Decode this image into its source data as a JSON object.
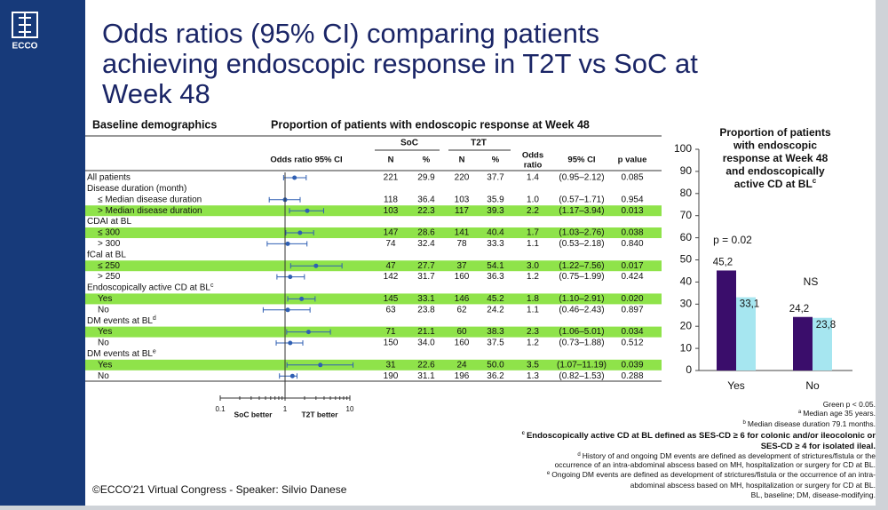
{
  "logo": "ECCO",
  "title": [
    "Odds ratios (95% CI) comparing patients",
    "achieving endoscopic response in T2T vs SoC at",
    "Week 48"
  ],
  "table": {
    "heading_left": "Baseline demographics",
    "heading_right": "Proportion of patients with endoscopic response at Week 48",
    "group_headers": [
      "SoC",
      "T2T"
    ],
    "columns": [
      "Odds ratio 95% CI",
      "N",
      "%",
      "N",
      "%",
      "Odds ratio",
      "95% CI",
      "p value"
    ],
    "rows": [
      {
        "label": "All patients",
        "soc_n": "221",
        "soc_pct": "29.9",
        "t2t_n": "220",
        "t2t_pct": "37.7",
        "or": "1.4",
        "ci": "(0.95–2.12)",
        "p": "0.085"
      },
      {
        "label": "Disease duration (month)"
      },
      {
        "label": "≤ Median disease duration",
        "soc_n": "118",
        "soc_pct": "36.4",
        "t2t_n": "103",
        "t2t_pct": "35.9",
        "or": "1.0",
        "ci": "(0.57–1.71)",
        "p": "0.954",
        "indent": true
      },
      {
        "label": "> Median disease duration",
        "soc_n": "103",
        "soc_pct": "22.3",
        "t2t_n": "117",
        "t2t_pct": "39.3",
        "or": "2.2",
        "ci": "(1.17–3.94)",
        "p": "0.013",
        "indent": true,
        "highlight": true
      },
      {
        "label": "CDAI at BL"
      },
      {
        "label": "≤ 300",
        "soc_n": "147",
        "soc_pct": "28.6",
        "t2t_n": "141",
        "t2t_pct": "40.4",
        "or": "1.7",
        "ci": "(1.03–2.76)",
        "p": "0.038",
        "indent": true,
        "highlight": true
      },
      {
        "label": "> 300",
        "soc_n": "74",
        "soc_pct": "32.4",
        "t2t_n": "78",
        "t2t_pct": "33.3",
        "or": "1.1",
        "ci": "(0.53–2.18)",
        "p": "0.840",
        "indent": true
      },
      {
        "label": "fCal at BL"
      },
      {
        "label": "≤ 250",
        "soc_n": "47",
        "soc_pct": "27.7",
        "t2t_n": "37",
        "t2t_pct": "54.1",
        "or": "3.0",
        "ci": "(1.22–7.56)",
        "p": "0.017",
        "indent": true,
        "highlight": true
      },
      {
        "label": "> 250",
        "soc_n": "142",
        "soc_pct": "31.7",
        "t2t_n": "160",
        "t2t_pct": "36.3",
        "or": "1.2",
        "ci": "(0.75–1.99)",
        "p": "0.424",
        "indent": true
      },
      {
        "label": "Endoscopically active CD at BL",
        "sup": "c"
      },
      {
        "label": "Yes",
        "soc_n": "145",
        "soc_pct": "33.1",
        "t2t_n": "146",
        "t2t_pct": "45.2",
        "or": "1.8",
        "ci": "(1.10–2.91)",
        "p": "0.020",
        "indent": true,
        "highlight": true
      },
      {
        "label": "No",
        "soc_n": "63",
        "soc_pct": "23.8",
        "t2t_n": "62",
        "t2t_pct": "24.2",
        "or": "1.1",
        "ci": "(0.46–2.43)",
        "p": "0.897",
        "indent": true
      },
      {
        "label": "DM events at BL",
        "sup": "d"
      },
      {
        "label": "Yes",
        "soc_n": "71",
        "soc_pct": "21.1",
        "t2t_n": "60",
        "t2t_pct": "38.3",
        "or": "2.3",
        "ci": "(1.06–5.01)",
        "p": "0.034",
        "indent": true,
        "highlight": true
      },
      {
        "label": "No",
        "soc_n": "150",
        "soc_pct": "34.0",
        "t2t_n": "160",
        "t2t_pct": "37.5",
        "or": "1.2",
        "ci": "(0.73–1.88)",
        "p": "0.512",
        "indent": true
      },
      {
        "label": "DM events at BL",
        "sup": "e"
      },
      {
        "label": "Yes",
        "soc_n": "31",
        "soc_pct": "22.6",
        "t2t_n": "24",
        "t2t_pct": "50.0",
        "or": "3.5",
        "ci": "(1.07–11.19)",
        "p": "0.039",
        "indent": true,
        "highlight": true
      },
      {
        "label": "No",
        "soc_n": "190",
        "soc_pct": "31.1",
        "t2t_n": "196",
        "t2t_pct": "36.2",
        "or": "1.3",
        "ci": "(0.82–1.53)",
        "p": "0.288",
        "indent": true
      }
    ]
  },
  "forest": {
    "xlim": [
      0.1,
      10
    ],
    "xticks": [
      0.1,
      1,
      10
    ],
    "log": true,
    "left_label": "SoC better",
    "right_label": "T2T better",
    "color": "#2f5fb3"
  },
  "chart_data": {
    "type": "bar",
    "title": [
      "Proportion of patients",
      "with endoscopic",
      "response at Week 48",
      "and endoscopically",
      "active CD at BL"
    ],
    "title_sup": "c",
    "categories": [
      "Yes",
      "No"
    ],
    "series": [
      {
        "color": "#3a0d6b",
        "values": [
          45.2,
          24.2
        ],
        "value_labels": [
          "45,2",
          "24,2"
        ]
      },
      {
        "color": "#a6e6f0",
        "values": [
          33.1,
          23.8
        ],
        "value_labels": [
          "33,1",
          "23,8"
        ]
      }
    ],
    "annotations": [
      "p = 0.02",
      "NS"
    ],
    "ylim": [
      0,
      100
    ],
    "yticks": [
      0,
      10,
      20,
      30,
      40,
      50,
      60,
      70,
      80,
      90,
      100
    ]
  },
  "footnotes": [
    {
      "text": "Green p < 0.05."
    },
    {
      "sup": "a",
      "text": "Median age 35 years."
    },
    {
      "sup": "b",
      "text": "Median disease duration 79.1 months."
    },
    {
      "sup": "c",
      "text": "Endoscopically active CD at BL defined as SES-CD ≥ 6 for colonic and/or ileocolonic or",
      "bold": true
    },
    {
      "text": "SES-CD ≥ 4 for isolated ileal.",
      "bold": true
    },
    {
      "sup": "d",
      "text": "History of and ongoing DM events are defined as development of strictures/fistula or the"
    },
    {
      "text": "occurrence of an intra-abdominal abscess based on MH, hospitalization or surgery for CD at BL."
    },
    {
      "sup": "e",
      "text": "Ongoing DM events are defined as development of strictures/fistula or the occurrence of an intra-"
    },
    {
      "text": "abdominal abscess based on MH, hospitalization or surgery for CD at BL."
    },
    {
      "text": "BL, baseline; DM, disease-modifying."
    }
  ],
  "footer": "©ECCO'21 Virtual Congress -  Speaker: Silvio Danese"
}
